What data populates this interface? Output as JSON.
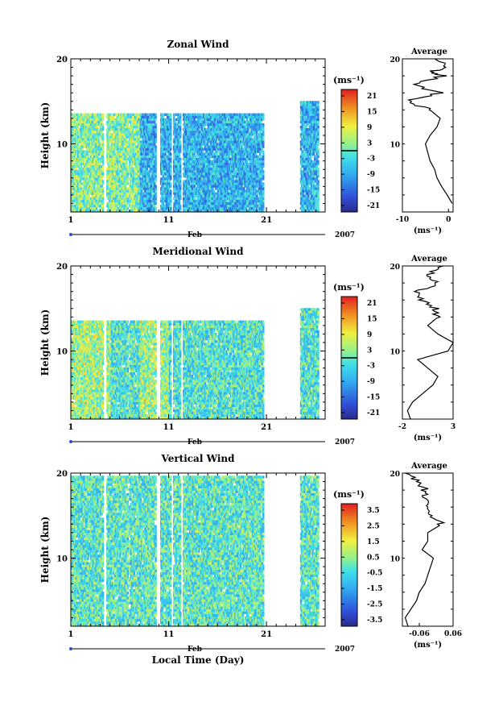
{
  "common": {
    "x_ticks": [
      "1",
      "11",
      "21"
    ],
    "month_label": "Feb",
    "year_label": "2007",
    "ylabel": "Height (km)",
    "y_ticks": [
      "20",
      "10"
    ],
    "unit_label": "(ms⁻¹)",
    "avg_title": "Average",
    "xlabel": "Local Time (Day)"
  },
  "chart_data": [
    {
      "type": "heatmap",
      "title": "Zonal Wind",
      "x_range_days": [
        1,
        27
      ],
      "y_range_km": [
        2,
        20
      ],
      "colorbar_ticks": [
        "21",
        "15",
        "9",
        "3",
        "-3",
        "-9",
        "-15",
        "-21"
      ],
      "colorbar_range": [
        -24,
        24
      ],
      "data_gaps_days": [
        [
          4.3,
          4.6
        ],
        [
          6.8,
          6.9
        ],
        [
          9.6,
          10.1
        ],
        [
          11.2,
          11.4
        ],
        [
          12.2,
          12.4
        ],
        [
          20.6,
          24.4
        ]
      ],
      "top_km": 13.5,
      "typical_value": -8,
      "average_profile": {
        "xlim": [
          -10,
          1
        ],
        "x_ticks": [
          "-10",
          "0"
        ],
        "points": [
          [
            0.8,
            3
          ],
          [
            -0.3,
            4
          ],
          [
            -1.5,
            5
          ],
          [
            -2.5,
            6
          ],
          [
            -3,
            7
          ],
          [
            -4,
            8
          ],
          [
            -4.5,
            9
          ],
          [
            -5,
            10
          ],
          [
            -4,
            11
          ],
          [
            -2.5,
            12
          ],
          [
            -1.8,
            13
          ],
          [
            -4,
            14
          ],
          [
            -9,
            15
          ],
          [
            -2,
            16
          ],
          [
            -8,
            17
          ],
          [
            -1,
            18
          ],
          [
            -4,
            18.5
          ],
          [
            0,
            19
          ],
          [
            -3,
            20
          ]
        ]
      }
    },
    {
      "type": "heatmap",
      "title": "Meridional Wind",
      "x_range_days": [
        1,
        27
      ],
      "y_range_km": [
        2,
        20
      ],
      "colorbar_ticks": [
        "21",
        "15",
        "9",
        "3",
        "-3",
        "-9",
        "-15",
        "-21"
      ],
      "colorbar_range": [
        -24,
        24
      ],
      "data_gaps_days": [
        [
          4.3,
          4.6
        ],
        [
          6.8,
          6.9
        ],
        [
          9.6,
          10.1
        ],
        [
          11.2,
          11.4
        ],
        [
          12.2,
          12.4
        ],
        [
          20.6,
          24.4
        ]
      ],
      "top_km": 13.5,
      "typical_value": -2,
      "average_profile": {
        "xlim": [
          -2,
          3
        ],
        "x_ticks": [
          "-2",
          "3"
        ],
        "points": [
          [
            -1.2,
            2
          ],
          [
            -1.5,
            3
          ],
          [
            -1,
            4
          ],
          [
            0,
            5
          ],
          [
            1,
            6
          ],
          [
            1.5,
            7
          ],
          [
            0.5,
            8
          ],
          [
            -0.5,
            9
          ],
          [
            2.5,
            10
          ],
          [
            3,
            11
          ],
          [
            1.5,
            12
          ],
          [
            0.5,
            13
          ],
          [
            1.5,
            14
          ],
          [
            1.2,
            15
          ],
          [
            0,
            16
          ],
          [
            -0.5,
            17
          ],
          [
            1.5,
            18
          ],
          [
            0.5,
            19
          ],
          [
            2,
            20
          ]
        ]
      }
    },
    {
      "type": "heatmap",
      "title": "Vertical Wind",
      "x_range_days": [
        1,
        27
      ],
      "y_range_km": [
        2,
        20
      ],
      "colorbar_ticks": [
        "3.5",
        "2.5",
        "1.5",
        "0.5",
        "-0.5",
        "-1.5",
        "-2.5",
        "-3.5"
      ],
      "colorbar_range": [
        -4,
        4
      ],
      "data_gaps_days": [
        [
          4.3,
          4.6
        ],
        [
          6.8,
          6.9
        ],
        [
          9.6,
          10.1
        ],
        [
          11.2,
          11.4
        ],
        [
          12.2,
          12.4
        ],
        [
          20.6,
          24.4
        ]
      ],
      "top_km": 19.5,
      "typical_value": -0.2,
      "average_profile": {
        "xlim": [
          -0.12,
          0.06
        ],
        "x_ticks": [
          "-0.06",
          "0.06"
        ],
        "points": [
          [
            -0.1,
            2
          ],
          [
            -0.11,
            3
          ],
          [
            -0.09,
            4
          ],
          [
            -0.07,
            5
          ],
          [
            -0.06,
            6
          ],
          [
            -0.04,
            7
          ],
          [
            -0.03,
            8
          ],
          [
            -0.02,
            9
          ],
          [
            -0.01,
            10
          ],
          [
            -0.05,
            11
          ],
          [
            -0.03,
            12
          ],
          [
            -0.03,
            13
          ],
          [
            0.02,
            14
          ],
          [
            -0.02,
            15
          ],
          [
            -0.03,
            16
          ],
          [
            -0.05,
            17
          ],
          [
            -0.04,
            18
          ],
          [
            -0.06,
            19
          ],
          [
            -0.11,
            20
          ]
        ]
      }
    }
  ]
}
